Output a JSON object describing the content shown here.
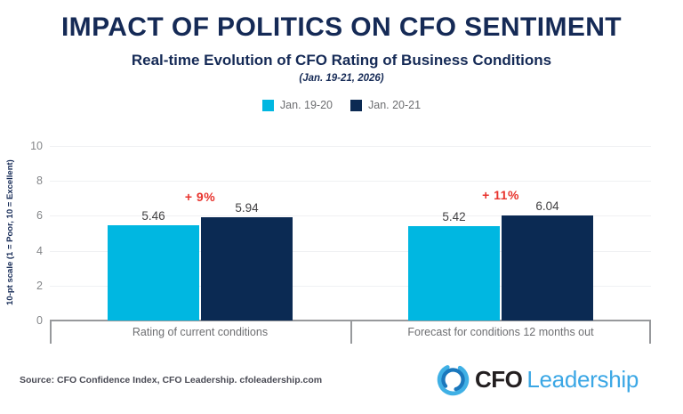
{
  "header": {
    "title": "IMPACT OF POLITICS ON CFO SENTIMENT",
    "subtitle": "Real-time Evolution of CFO Rating of Business Conditions",
    "date_note": "(Jan. 19-21, 2026)"
  },
  "legend": {
    "items": [
      {
        "label": "Jan. 19-20",
        "color": "#00b7e1"
      },
      {
        "label": "Jan. 20-21",
        "color": "#0b2a53"
      }
    ]
  },
  "chart_data": {
    "type": "bar",
    "title": "Real-time Evolution of CFO Rating of Business Conditions",
    "categories": [
      "Rating of current conditions",
      "Forecast for conditions 12 months out"
    ],
    "series": [
      {
        "name": "Jan. 19-20",
        "color": "#00b7e1",
        "values": [
          5.46,
          5.42
        ]
      },
      {
        "name": "Jan. 20-21",
        "color": "#0b2a53",
        "values": [
          5.94,
          6.04
        ]
      }
    ],
    "deltas": [
      "+ 9%",
      "+ 11%"
    ],
    "xlabel": "",
    "ylabel": "10-pt scale (1 = Poor, 10 = Excellent)",
    "ylim": [
      0,
      10
    ],
    "yticks": [
      0,
      2,
      4,
      6,
      8,
      10
    ],
    "grid": true,
    "legend_position": "top"
  },
  "colors": {
    "title_navy": "#152a56",
    "bar_cyan": "#00b7e1",
    "bar_navy": "#0b2a53",
    "delta_red": "#e8332d",
    "axis_gray": "#97999c",
    "grid_gray": "#f0f1f3",
    "label_gray": "#6d6e71",
    "value_dark": "#414042",
    "logo_blue": "#3ba7e5"
  },
  "footer": {
    "source": "Source: CFO Confidence Index, CFO Leadership. cfoleadership.com",
    "logo": {
      "cfo": "CFO",
      "leadership": "Leadership"
    }
  }
}
